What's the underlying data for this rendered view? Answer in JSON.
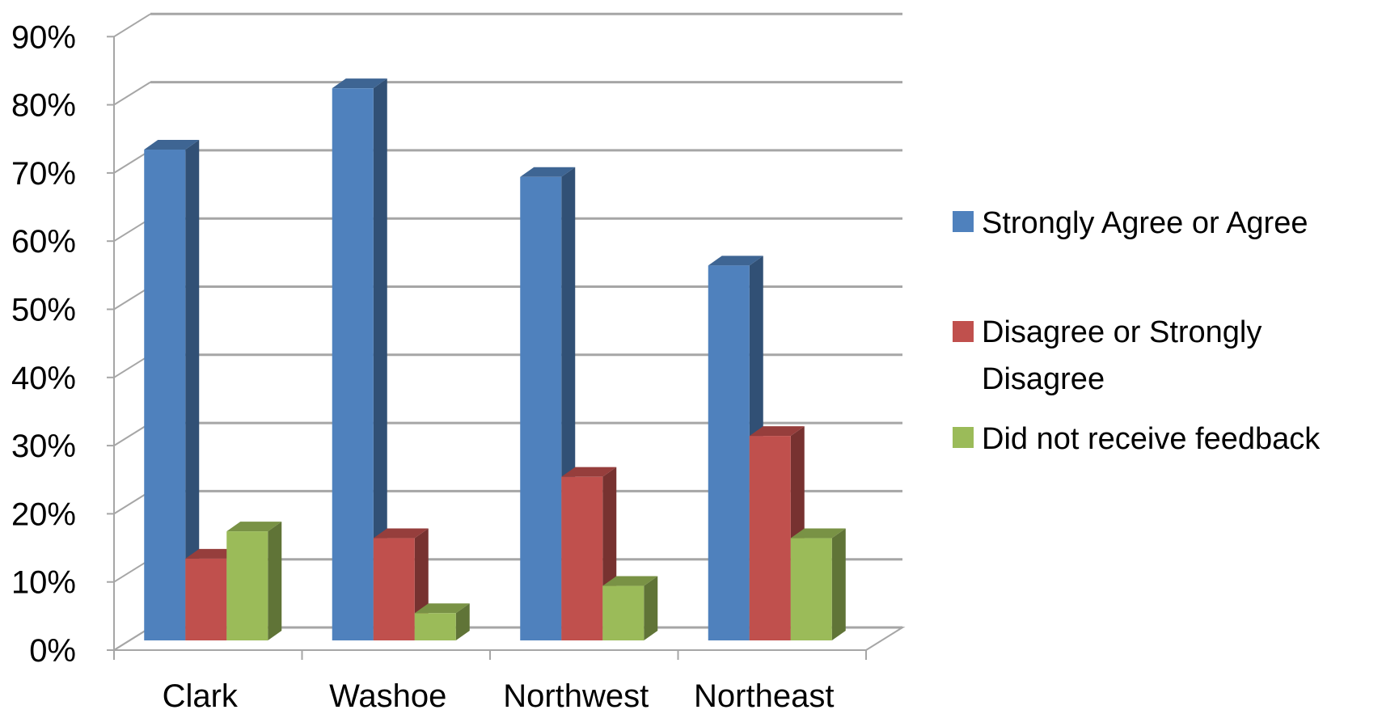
{
  "chart_data": {
    "type": "bar",
    "style": "3d-clustered-column",
    "title": "",
    "xlabel": "",
    "ylabel": "",
    "ylim": [
      0,
      90
    ],
    "yticks": [
      "0%",
      "10%",
      "20%",
      "30%",
      "40%",
      "50%",
      "60%",
      "70%",
      "80%",
      "90%"
    ],
    "ytick_values": [
      0,
      10,
      20,
      30,
      40,
      50,
      60,
      70,
      80,
      90
    ],
    "categories": [
      "Clark",
      "Washoe",
      "Northwest",
      "Northeast"
    ],
    "series": [
      {
        "name": "Strongly Agree or Agree",
        "values": [
          72,
          81,
          68,
          55
        ],
        "color": "#4F81BD"
      },
      {
        "name": "Disagree or Strongly Disagree",
        "values": [
          12,
          15,
          24,
          30
        ],
        "color": "#C0504D"
      },
      {
        "name": "Did not receive feedback",
        "values": [
          16,
          4,
          8,
          15
        ],
        "color": "#9BBB59"
      }
    ],
    "grid": true,
    "legend_position": "right"
  },
  "legend": {
    "line1": [
      "Strongly Agree or Agree"
    ],
    "line2": [
      "Disagree or Strongly",
      "Disagree"
    ],
    "line3": [
      "Did not receive feedback"
    ]
  }
}
